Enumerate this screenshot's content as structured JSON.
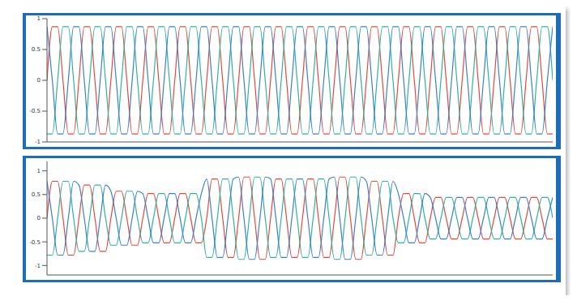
{
  "chart_data": [
    {
      "type": "line",
      "tick_labels": "y",
      "grid": false,
      "xlim": [
        0,
        95
      ],
      "ylim": [
        -1,
        1
      ],
      "yticks": [
        -1,
        -0.5,
        0,
        0.5,
        1
      ],
      "x": [
        0,
        1,
        2,
        3,
        4,
        5,
        6,
        7,
        8,
        9,
        10,
        11,
        12,
        13,
        14,
        15,
        16,
        17,
        18,
        19,
        20,
        21,
        22,
        23,
        24,
        25,
        26,
        27,
        28,
        29,
        30,
        31,
        32,
        33,
        34,
        35,
        36,
        37,
        38,
        39,
        40,
        41,
        42,
        43,
        44,
        45,
        46,
        47,
        48,
        49,
        50,
        51,
        52,
        53,
        54,
        55,
        56,
        57,
        58,
        59,
        60,
        61,
        62,
        63,
        64,
        65,
        66,
        67,
        68,
        69,
        70,
        71,
        72,
        73,
        74,
        75,
        76,
        77,
        78,
        79,
        80,
        81,
        82,
        83,
        84,
        85,
        86,
        87,
        88,
        89,
        90,
        91,
        92,
        93,
        94,
        95
      ],
      "series": [
        {
          "color": "#e5483c",
          "values": [
            0,
            0.87,
            0.87,
            0,
            -0.87,
            -0.87,
            0,
            0.87,
            0.87,
            0,
            -0.87,
            -0.87,
            0,
            0.87,
            0.87,
            0,
            -0.87,
            -0.87,
            0,
            0.87,
            0.87,
            0,
            -0.87,
            -0.87,
            0,
            0.87,
            0.87,
            0,
            -0.87,
            -0.87,
            0,
            0.87,
            0.87,
            0,
            -0.87,
            -0.87,
            0,
            0.87,
            0.87,
            0,
            -0.87,
            -0.87,
            0,
            0.87,
            0.87,
            0,
            -0.87,
            -0.87,
            0,
            0.87,
            0.87,
            0,
            -0.87,
            -0.87,
            0,
            0.87,
            0.87,
            0,
            -0.87,
            -0.87,
            0,
            0.87,
            0.87,
            0,
            -0.87,
            -0.87,
            0,
            0.87,
            0.87,
            0,
            -0.87,
            -0.87,
            0,
            0.87,
            0.87,
            0,
            -0.87,
            -0.87,
            0,
            0.87,
            0.87,
            0,
            -0.87,
            -0.87,
            0,
            0.87,
            0.87,
            0,
            -0.87,
            -0.87,
            0,
            0.87,
            0.87,
            0,
            -0.87,
            -0.87
          ]
        },
        {
          "color": "#2fb39b",
          "values": [
            -0.87,
            -0.87,
            0,
            0.87,
            0.87,
            0,
            -0.87,
            -0.87,
            0,
            0.87,
            0.87,
            0,
            -0.87,
            -0.87,
            0,
            0.87,
            0.87,
            0,
            -0.87,
            -0.87,
            0,
            0.87,
            0.87,
            0,
            -0.87,
            -0.87,
            0,
            0.87,
            0.87,
            0,
            -0.87,
            -0.87,
            0,
            0.87,
            0.87,
            0,
            -0.87,
            -0.87,
            0,
            0.87,
            0.87,
            0,
            -0.87,
            -0.87,
            0,
            0.87,
            0.87,
            0,
            -0.87,
            -0.87,
            0,
            0.87,
            0.87,
            0,
            -0.87,
            -0.87,
            0,
            0.87,
            0.87,
            0,
            -0.87,
            -0.87,
            0,
            0.87,
            0.87,
            0,
            -0.87,
            -0.87,
            0,
            0.87,
            0.87,
            0,
            -0.87,
            -0.87,
            0,
            0.87,
            0.87,
            0,
            -0.87,
            -0.87,
            0,
            0.87,
            0.87,
            0,
            -0.87,
            -0.87,
            0,
            0.87,
            0.87,
            0,
            -0.87,
            -0.87,
            0,
            0.87,
            0.87,
            0
          ]
        },
        {
          "color": "#3b7fd1",
          "values": [
            0.87,
            0,
            -0.87,
            -0.87,
            0,
            0.87,
            0.87,
            0,
            -0.87,
            -0.87,
            0,
            0.87,
            0.87,
            0,
            -0.87,
            -0.87,
            0,
            0.87,
            0.87,
            0,
            -0.87,
            -0.87,
            0,
            0.87,
            0.87,
            0,
            -0.87,
            -0.87,
            0,
            0.87,
            0.87,
            0,
            -0.87,
            -0.87,
            0,
            0.87,
            0.87,
            0,
            -0.87,
            -0.87,
            0,
            0.87,
            0.87,
            0,
            -0.87,
            -0.87,
            0,
            0.87,
            0.87,
            0,
            -0.87,
            -0.87,
            0,
            0.87,
            0.87,
            0,
            -0.87,
            -0.87,
            0,
            0.87,
            0.87,
            0,
            -0.87,
            -0.87,
            0,
            0.87,
            0.87,
            0,
            -0.87,
            -0.87,
            0,
            0.87,
            0.87,
            0,
            -0.87,
            -0.87,
            0,
            0.87,
            0.87,
            0,
            -0.87,
            -0.87,
            0,
            0.87,
            0.87,
            0,
            -0.87,
            -0.87,
            0,
            0.87,
            0.87,
            0,
            -0.87,
            -0.87,
            0,
            0.87
          ]
        }
      ]
    },
    {
      "type": "line",
      "tick_labels": "y",
      "grid": false,
      "xlim": [
        0,
        95
      ],
      "ylim": [
        -1.2,
        1.2
      ],
      "yticks": [
        -1,
        -0.5,
        0,
        0.5,
        1
      ],
      "x": [
        0,
        1,
        2,
        3,
        4,
        5,
        6,
        7,
        8,
        9,
        10,
        11,
        12,
        13,
        14,
        15,
        16,
        17,
        18,
        19,
        20,
        21,
        22,
        23,
        24,
        25,
        26,
        27,
        28,
        29,
        30,
        31,
        32,
        33,
        34,
        35,
        36,
        37,
        38,
        39,
        40,
        41,
        42,
        43,
        44,
        45,
        46,
        47,
        48,
        49,
        50,
        51,
        52,
        53,
        54,
        55,
        56,
        57,
        58,
        59,
        60,
        61,
        62,
        63,
        64,
        65,
        66,
        67,
        68,
        69,
        70,
        71,
        72,
        73,
        74,
        75,
        76,
        77,
        78,
        79,
        80,
        81,
        82,
        83,
        84,
        85,
        86,
        87,
        88,
        89,
        90,
        91,
        92,
        93,
        94,
        95
      ],
      "series": [
        {
          "color": "#e5483c",
          "values": [
            0,
            0.78,
            0.78,
            0,
            -0.78,
            -0.78,
            0,
            0.7,
            0.7,
            0,
            -0.7,
            -0.7,
            0,
            0.57,
            0.57,
            0,
            -0.57,
            -0.57,
            0,
            0.52,
            0.52,
            0,
            -0.52,
            -0.52,
            0,
            0.52,
            0.52,
            0,
            -0.52,
            -0.52,
            0,
            0.83,
            0.83,
            0,
            -0.83,
            -0.83,
            0,
            0.87,
            0.87,
            0,
            -0.87,
            -0.87,
            0,
            0.83,
            0.83,
            0,
            -0.83,
            -0.83,
            0,
            0.83,
            0.83,
            0,
            -0.83,
            -0.83,
            0,
            0.87,
            0.87,
            0,
            -0.87,
            -0.87,
            0,
            0.78,
            0.78,
            0,
            -0.78,
            -0.78,
            0,
            0.52,
            0.52,
            0,
            -0.52,
            -0.52,
            0,
            0.44,
            0.44,
            0,
            -0.44,
            -0.44,
            0,
            0.44,
            0.44,
            0,
            -0.44,
            -0.44,
            0,
            0.44,
            0.44,
            0,
            -0.44,
            -0.44,
            0,
            0.44,
            0.44,
            0,
            -0.44,
            -0.44
          ]
        },
        {
          "color": "#2fb39b",
          "values": [
            -0.78,
            -0.78,
            0,
            0.78,
            0.78,
            0,
            -0.7,
            -0.7,
            0,
            0.7,
            0.7,
            0,
            -0.57,
            -0.57,
            0,
            0.57,
            0.57,
            0,
            -0.52,
            -0.52,
            0,
            0.52,
            0.52,
            0,
            -0.52,
            -0.52,
            0,
            0.52,
            0.52,
            0,
            -0.83,
            -0.83,
            0,
            0.83,
            0.83,
            0,
            -0.87,
            -0.87,
            0,
            0.87,
            0.87,
            0,
            -0.83,
            -0.83,
            0,
            0.83,
            0.83,
            0,
            -0.83,
            -0.83,
            0,
            0.83,
            0.83,
            0,
            -0.87,
            -0.87,
            0,
            0.87,
            0.87,
            0,
            -0.78,
            -0.78,
            0,
            0.78,
            0.78,
            0,
            -0.52,
            -0.52,
            0,
            0.52,
            0.52,
            0,
            -0.44,
            -0.44,
            0,
            0.44,
            0.44,
            0,
            -0.44,
            -0.44,
            0,
            0.44,
            0.44,
            0,
            -0.44,
            -0.44,
            0,
            0.44,
            0.44,
            0,
            -0.44,
            -0.44,
            0,
            0.44,
            0.44,
            0
          ]
        },
        {
          "color": "#3b7fd1",
          "values": [
            0.78,
            0,
            -0.78,
            -0.78,
            0,
            0.78,
            0.7,
            0,
            -0.7,
            -0.7,
            0,
            0.7,
            0.57,
            0,
            -0.57,
            -0.57,
            0,
            0.57,
            0.52,
            0,
            -0.52,
            -0.52,
            0,
            0.52,
            0.52,
            0,
            -0.52,
            -0.52,
            0,
            0.52,
            0.83,
            0,
            -0.83,
            -0.83,
            0,
            0.83,
            0.87,
            0,
            -0.87,
            -0.87,
            0,
            0.87,
            0.83,
            0,
            -0.83,
            -0.83,
            0,
            0.83,
            0.83,
            0,
            -0.83,
            -0.83,
            0,
            0.83,
            0.87,
            0,
            -0.87,
            -0.87,
            0,
            0.87,
            0.78,
            0,
            -0.78,
            -0.78,
            0,
            0.78,
            0.52,
            0,
            -0.52,
            -0.52,
            0,
            0.52,
            0.44,
            0,
            -0.44,
            -0.44,
            0,
            0.44,
            0.44,
            0,
            -0.44,
            -0.44,
            0,
            0.44,
            0.44,
            0,
            -0.44,
            -0.44,
            0,
            0.44,
            0.44,
            0,
            -0.44,
            -0.44,
            0,
            0.44
          ]
        }
      ]
    }
  ]
}
